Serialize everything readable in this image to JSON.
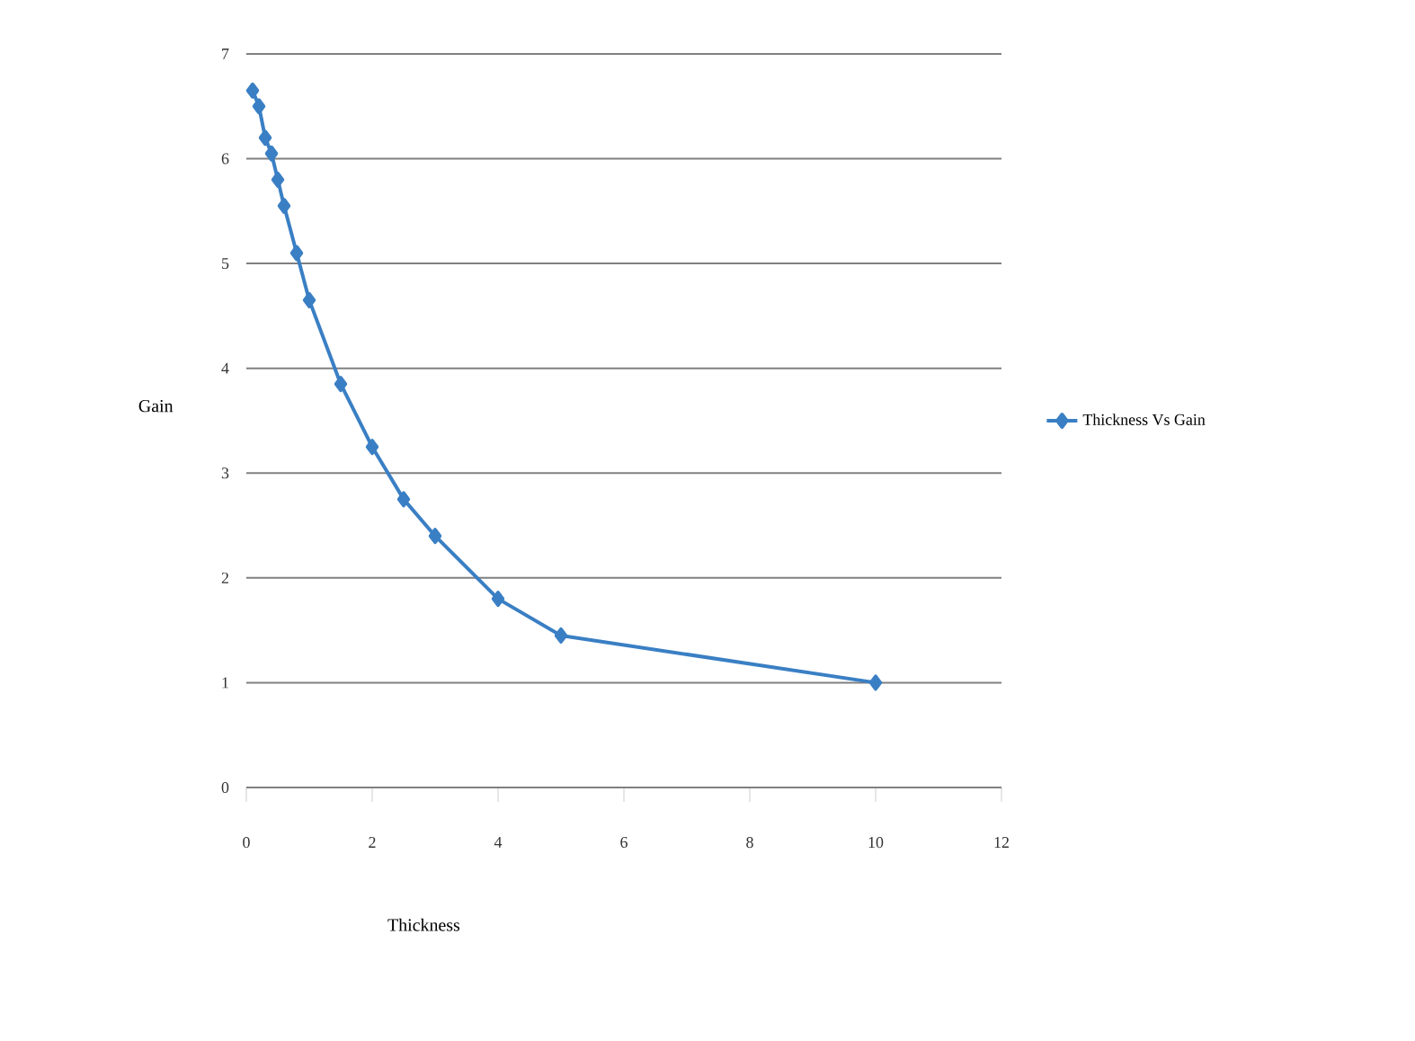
{
  "chart_data": {
    "type": "line",
    "xlabel": "Thickness",
    "ylabel": "Gain",
    "series": [
      {
        "name": "Thickness Vs Gain",
        "color": "#3a7fc4",
        "x": [
          0.1,
          0.2,
          0.3,
          0.4,
          0.5,
          0.6,
          0.8,
          1,
          1.5,
          2,
          2.5,
          3,
          4,
          5,
          10
        ],
        "values": [
          6.65,
          6.5,
          6.2,
          6.05,
          5.8,
          5.55,
          5.1,
          4.65,
          3.85,
          3.25,
          2.75,
          2.4,
          1.8,
          1.45,
          1.0
        ]
      }
    ],
    "xlim": [
      0,
      12
    ],
    "xticks": [
      0,
      2,
      4,
      6,
      8,
      10,
      12
    ],
    "ylim": [
      0,
      7
    ],
    "yticks": [
      0,
      1,
      2,
      3,
      4,
      5,
      6,
      7
    ],
    "grid": "y",
    "legend": "right",
    "marker": "diamond",
    "line_style": "solid"
  }
}
